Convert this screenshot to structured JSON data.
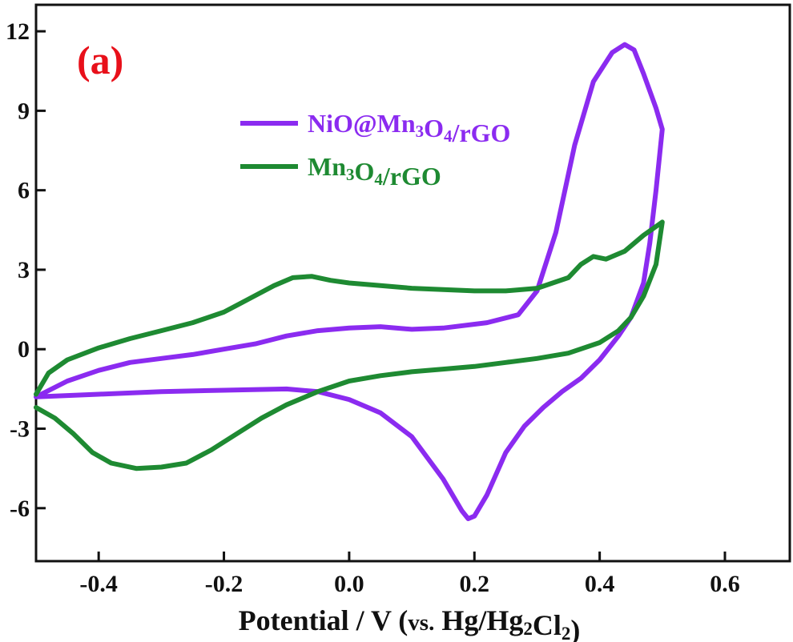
{
  "chart_data": {
    "type": "line",
    "title": "",
    "panel_label": "(a)",
    "xlabel": "Potential / V (vs. Hg/Hg",
    "xlabel_parts": [
      {
        "text": "Potential / V (",
        "sub": false
      },
      {
        "text": "vs.",
        "sub": false,
        "small": true
      },
      {
        "text": " Hg/Hg",
        "sub": false
      },
      {
        "text": "2",
        "sub": true
      },
      {
        "text": "Cl",
        "sub": false
      },
      {
        "text": "2",
        "sub": true
      },
      {
        "text": ")",
        "sub": false
      }
    ],
    "ylabel": "",
    "xlim": [
      -0.5,
      0.6
    ],
    "ylim": [
      -8,
      13
    ],
    "xticks": [
      -0.4,
      -0.2,
      0.0,
      0.2,
      0.4,
      0.6
    ],
    "xtick_labels": [
      "-0.4",
      "-0.2",
      "0.0",
      "0.2",
      "0.4",
      "0.6"
    ],
    "yticks": [
      -6,
      -3,
      0,
      3,
      6,
      9,
      12
    ],
    "ytick_labels": [
      "-6",
      "-3",
      "0",
      "3",
      "6",
      "9",
      "12"
    ],
    "grid": false,
    "legend_position": "top-center",
    "series": [
      {
        "name": "NiO@Mn3O4/rGO",
        "name_parts": [
          {
            "text": "NiO@Mn",
            "sub": false
          },
          {
            "text": "3",
            "sub": true
          },
          {
            "text": "O",
            "sub": false
          },
          {
            "text": "4",
            "sub": true
          },
          {
            "text": "/rGO",
            "sub": false
          }
        ],
        "color": "#8B2BF0",
        "points": [
          [
            -0.5,
            -1.8
          ],
          [
            -0.4,
            -1.7
          ],
          [
            -0.3,
            -1.6
          ],
          [
            -0.2,
            -1.55
          ],
          [
            -0.1,
            -1.5
          ],
          [
            -0.05,
            -1.6
          ],
          [
            0.0,
            -1.9
          ],
          [
            0.05,
            -2.4
          ],
          [
            0.1,
            -3.3
          ],
          [
            0.15,
            -4.9
          ],
          [
            0.18,
            -6.1
          ],
          [
            0.19,
            -6.4
          ],
          [
            0.2,
            -6.3
          ],
          [
            0.22,
            -5.5
          ],
          [
            0.25,
            -3.9
          ],
          [
            0.28,
            -2.9
          ],
          [
            0.31,
            -2.2
          ],
          [
            0.34,
            -1.6
          ],
          [
            0.37,
            -1.1
          ],
          [
            0.4,
            -0.4
          ],
          [
            0.43,
            0.5
          ],
          [
            0.45,
            1.2
          ],
          [
            0.47,
            2.5
          ],
          [
            0.48,
            4.0
          ],
          [
            0.49,
            6.0
          ],
          [
            0.5,
            8.3
          ],
          [
            0.49,
            9.1
          ],
          [
            0.47,
            10.4
          ],
          [
            0.455,
            11.3
          ],
          [
            0.44,
            11.5
          ],
          [
            0.42,
            11.2
          ],
          [
            0.39,
            10.1
          ],
          [
            0.36,
            7.7
          ],
          [
            0.33,
            4.4
          ],
          [
            0.3,
            2.2
          ],
          [
            0.27,
            1.3
          ],
          [
            0.22,
            1.0
          ],
          [
            0.15,
            0.8
          ],
          [
            0.1,
            0.75
          ],
          [
            0.05,
            0.85
          ],
          [
            0.0,
            0.8
          ],
          [
            -0.05,
            0.7
          ],
          [
            -0.1,
            0.5
          ],
          [
            -0.15,
            0.2
          ],
          [
            -0.2,
            0.0
          ],
          [
            -0.25,
            -0.2
          ],
          [
            -0.3,
            -0.35
          ],
          [
            -0.35,
            -0.5
          ],
          [
            -0.4,
            -0.8
          ],
          [
            -0.45,
            -1.2
          ],
          [
            -0.5,
            -1.8
          ]
        ]
      },
      {
        "name": "Mn3O4/rGO",
        "name_parts": [
          {
            "text": "Mn",
            "sub": false
          },
          {
            "text": "3",
            "sub": true
          },
          {
            "text": "O",
            "sub": false
          },
          {
            "text": "4",
            "sub": true
          },
          {
            "text": "/rGO",
            "sub": false
          }
        ],
        "color": "#1E8A32",
        "points": [
          [
            -0.5,
            -2.2
          ],
          [
            -0.47,
            -2.6
          ],
          [
            -0.44,
            -3.2
          ],
          [
            -0.41,
            -3.9
          ],
          [
            -0.38,
            -4.3
          ],
          [
            -0.34,
            -4.5
          ],
          [
            -0.3,
            -4.45
          ],
          [
            -0.26,
            -4.3
          ],
          [
            -0.22,
            -3.8
          ],
          [
            -0.18,
            -3.2
          ],
          [
            -0.14,
            -2.6
          ],
          [
            -0.1,
            -2.1
          ],
          [
            -0.05,
            -1.6
          ],
          [
            0.0,
            -1.2
          ],
          [
            0.05,
            -1.0
          ],
          [
            0.1,
            -0.85
          ],
          [
            0.15,
            -0.75
          ],
          [
            0.2,
            -0.65
          ],
          [
            0.25,
            -0.5
          ],
          [
            0.3,
            -0.35
          ],
          [
            0.35,
            -0.15
          ],
          [
            0.4,
            0.25
          ],
          [
            0.43,
            0.7
          ],
          [
            0.45,
            1.2
          ],
          [
            0.47,
            2.0
          ],
          [
            0.49,
            3.2
          ],
          [
            0.5,
            4.8
          ],
          [
            0.47,
            4.3
          ],
          [
            0.44,
            3.7
          ],
          [
            0.41,
            3.4
          ],
          [
            0.39,
            3.5
          ],
          [
            0.37,
            3.2
          ],
          [
            0.35,
            2.7
          ],
          [
            0.3,
            2.3
          ],
          [
            0.25,
            2.2
          ],
          [
            0.2,
            2.2
          ],
          [
            0.15,
            2.25
          ],
          [
            0.1,
            2.3
          ],
          [
            0.05,
            2.4
          ],
          [
            0.0,
            2.5
          ],
          [
            -0.03,
            2.6
          ],
          [
            -0.06,
            2.75
          ],
          [
            -0.09,
            2.7
          ],
          [
            -0.12,
            2.4
          ],
          [
            -0.16,
            1.9
          ],
          [
            -0.2,
            1.4
          ],
          [
            -0.25,
            1.0
          ],
          [
            -0.3,
            0.7
          ],
          [
            -0.35,
            0.4
          ],
          [
            -0.4,
            0.05
          ],
          [
            -0.45,
            -0.4
          ],
          [
            -0.48,
            -0.9
          ],
          [
            -0.5,
            -1.7
          ]
        ]
      }
    ]
  },
  "colors": {
    "panel_label": "#E8101A",
    "axis": "#111111"
  }
}
